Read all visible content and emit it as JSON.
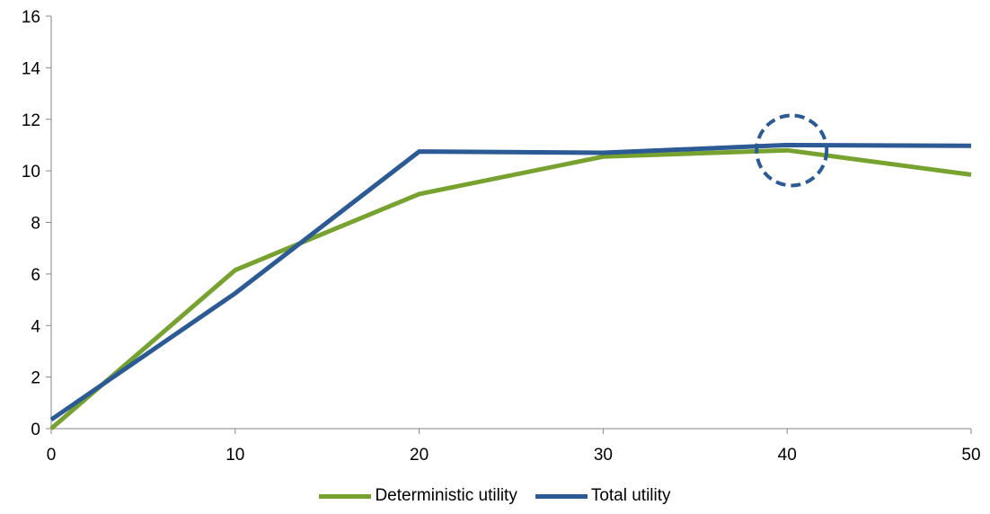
{
  "chart_data": {
    "type": "line",
    "x": [
      0,
      10,
      20,
      30,
      40,
      50
    ],
    "series": [
      {
        "name": "Deterministic utility",
        "color": "#77a22f",
        "values": [
          0.0,
          6.15,
          9.1,
          10.55,
          10.8,
          9.85
        ]
      },
      {
        "name": "Total utility",
        "color": "#2b5a94",
        "values": [
          0.35,
          5.25,
          10.75,
          10.7,
          11.0,
          10.97
        ]
      }
    ],
    "xlim": [
      0,
      50
    ],
    "ylim": [
      0,
      16
    ],
    "xticks": [
      "0",
      "10",
      "20",
      "30",
      "40",
      "50"
    ],
    "yticks": [
      "0",
      "2",
      "4",
      "6",
      "8",
      "10",
      "12",
      "14",
      "16"
    ],
    "xlabel": "",
    "ylabel": "",
    "title": "",
    "grid": false,
    "legend_position": "bottom",
    "annotation": {
      "shape": "dashed-circle",
      "x": 40,
      "y": 11,
      "color": "#2b5a94"
    }
  }
}
